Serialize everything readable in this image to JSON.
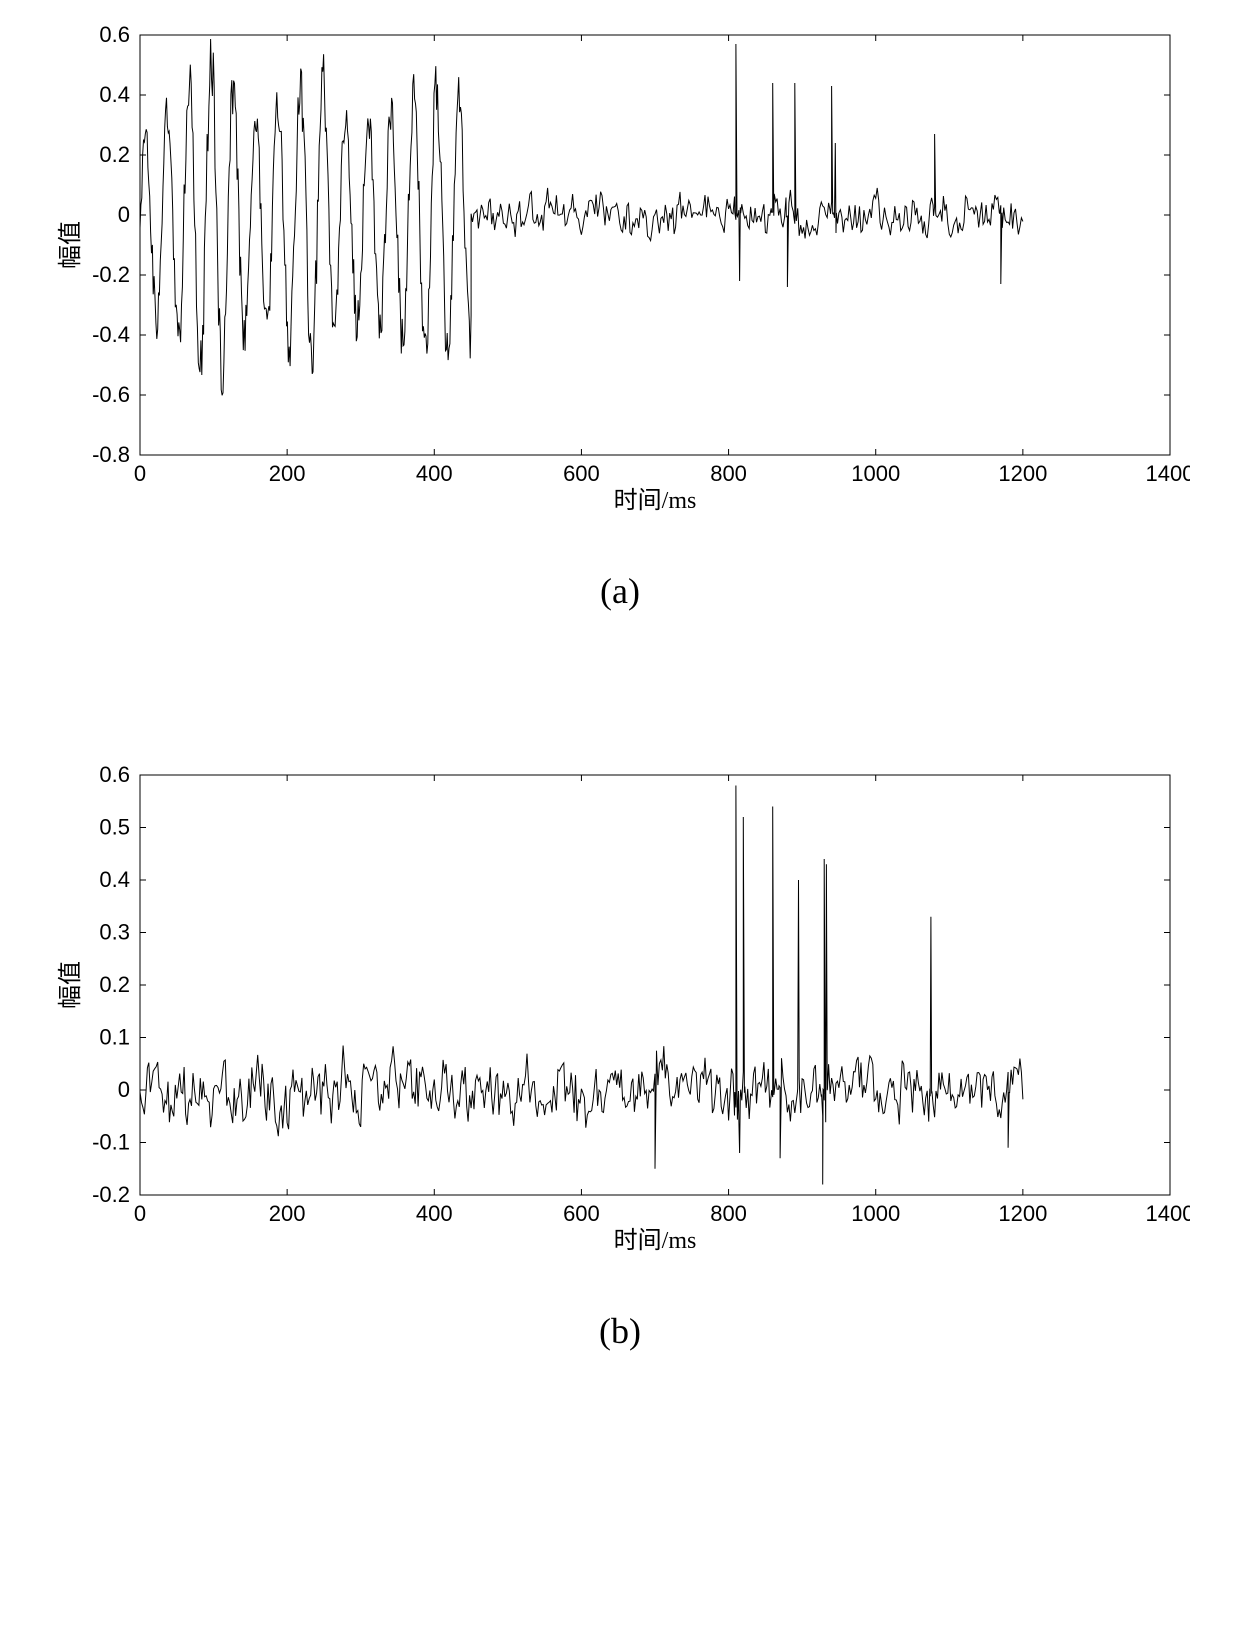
{
  "background_color": "#ffffff",
  "line_color": "#000000",
  "axis_color": "#000000",
  "tick_fontsize": 22,
  "axis_label_fontsize": 24,
  "sublabel_fontsize": 36,
  "chart_a": {
    "type": "line",
    "sublabel": "(a)",
    "xlabel": "时间/ms",
    "ylabel": "幅值",
    "xlim": [
      0,
      1400
    ],
    "ylim": [
      -0.8,
      0.6
    ],
    "xticks": [
      0,
      200,
      400,
      600,
      800,
      1000,
      1200,
      1400
    ],
    "yticks": [
      -0.8,
      -0.6,
      -0.4,
      -0.2,
      0,
      0.2,
      0.4,
      0.6
    ],
    "xtick_labels": [
      "0",
      "200",
      "400",
      "600",
      "800",
      "1000",
      "1200",
      "1400"
    ],
    "ytick_labels": [
      "-0.8",
      "-0.6",
      "-0.4",
      "-0.2",
      "0",
      "0.2",
      "0.4",
      "0.6"
    ],
    "signal": {
      "description": "Large-amplitude quasi-sinusoidal oscillation 0–450 ms (peaks ≈ ±0.5), transitioning to low-amplitude noise (±0.1) with narrow spikes (~0.4–0.57) near 810,860,890,940,1080 ms; data ends at 1200 ms.",
      "segments": [
        {
          "t0": 0,
          "t1": 450,
          "mode": "osc",
          "amp": 0.48,
          "amp_env": [
            [
              0,
              0.25
            ],
            [
              60,
              0.45
            ],
            [
              100,
              0.55
            ],
            [
              160,
              0.32
            ],
            [
              240,
              0.5
            ],
            [
              280,
              0.35
            ],
            [
              340,
              0.35
            ],
            [
              380,
              0.44
            ],
            [
              420,
              0.46
            ],
            [
              450,
              0.4
            ]
          ],
          "freq_hz": 0.033,
          "bias": -0.02
        },
        {
          "t0": 450,
          "t1": 1200,
          "mode": "noise",
          "amp": 0.1,
          "bias": 0.0,
          "spikes": [
            {
              "t": 810,
              "v": 0.57
            },
            {
              "t": 815,
              "v": -0.22
            },
            {
              "t": 860,
              "v": 0.44
            },
            {
              "t": 890,
              "v": 0.44
            },
            {
              "t": 940,
              "v": 0.43
            },
            {
              "t": 945,
              "v": 0.24
            },
            {
              "t": 1080,
              "v": 0.27
            },
            {
              "t": 880,
              "v": -0.24
            },
            {
              "t": 1170,
              "v": -0.23
            }
          ]
        }
      ]
    }
  },
  "chart_b": {
    "type": "line",
    "sublabel": "(b)",
    "xlabel": "时间/ms",
    "ylabel": "幅值",
    "xlim": [
      0,
      1400
    ],
    "ylim": [
      -0.2,
      0.6
    ],
    "xticks": [
      0,
      200,
      400,
      600,
      800,
      1000,
      1200,
      1400
    ],
    "yticks": [
      -0.2,
      -0.1,
      0,
      0.1,
      0.2,
      0.3,
      0.4,
      0.5,
      0.6
    ],
    "xtick_labels": [
      "0",
      "200",
      "400",
      "600",
      "800",
      "1000",
      "1200",
      "1400"
    ],
    "ytick_labels": [
      "-0.2",
      "-0.1",
      "0",
      "0.1",
      "0.2",
      "0.3",
      "0.4",
      "0.5",
      "0.6"
    ],
    "signal": {
      "description": "Dense broadband noise ±0.1 across 0–1200 ms with sharp positive spikes near 810 (0.58), 820 (0.52), 860 (0.54), 895 (0.40), 930 (0.43), 1075 (0.33); small negative dips to −0.15 near 700, −0.18 near 930.",
      "segments": [
        {
          "t0": 0,
          "t1": 1200,
          "mode": "noise",
          "amp": 0.09,
          "bias": 0.0,
          "density": 2,
          "spikes": [
            {
              "t": 810,
              "v": 0.58
            },
            {
              "t": 820,
              "v": 0.52
            },
            {
              "t": 860,
              "v": 0.54
            },
            {
              "t": 895,
              "v": 0.4
            },
            {
              "t": 930,
              "v": 0.44
            },
            {
              "t": 933,
              "v": 0.43
            },
            {
              "t": 1075,
              "v": 0.33
            },
            {
              "t": 700,
              "v": -0.15
            },
            {
              "t": 928,
              "v": -0.18
            },
            {
              "t": 815,
              "v": -0.12
            },
            {
              "t": 870,
              "v": -0.13
            },
            {
              "t": 1180,
              "v": -0.11
            }
          ]
        }
      ]
    }
  }
}
